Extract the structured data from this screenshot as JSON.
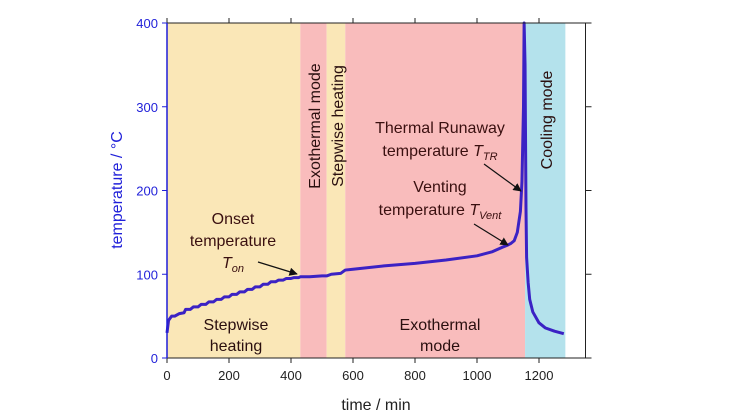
{
  "chart_data": {
    "type": "line",
    "x_label": "time / min",
    "y_label": "temperature / °C",
    "xlim": [
      0,
      1350
    ],
    "ylim": [
      0,
      400
    ],
    "xticks": [
      0,
      200,
      400,
      600,
      800,
      1000,
      1200
    ],
    "yticks": [
      0,
      100,
      200,
      300,
      400
    ],
    "regions": [
      {
        "start": 0,
        "end": 430,
        "color": "#fae7b7"
      },
      {
        "start": 430,
        "end": 515,
        "color": "#f9bcbc"
      },
      {
        "start": 515,
        "end": 575,
        "color": "#fae7b7"
      },
      {
        "start": 575,
        "end": 1155,
        "color": "#f9bcbc"
      },
      {
        "start": 1155,
        "end": 1285,
        "color": "#b4e2ec"
      }
    ],
    "region_labels": [
      [
        "Stepwise",
        "heating"
      ],
      [
        "Exothermal mode"
      ],
      [
        "Stepwise heating"
      ],
      [
        "Exothermal",
        "mode"
      ],
      [
        "Cooling mode"
      ]
    ],
    "annotations": [
      {
        "lines": [
          "Onset",
          "temperature"
        ],
        "symbol": "T",
        "subscript": "on"
      },
      {
        "lines": [
          "Thermal Runaway",
          "temperature"
        ],
        "symbol": "T",
        "subscript": "TR"
      },
      {
        "lines": [
          "Venting",
          "temperature"
        ],
        "symbol": "T",
        "subscript": "Vent"
      }
    ],
    "series": [
      {
        "color": "#3b22c4",
        "x": [
          0,
          5,
          15,
          25,
          40,
          55,
          60,
          75,
          85,
          100,
          110,
          125,
          135,
          150,
          160,
          175,
          185,
          200,
          210,
          225,
          235,
          250,
          260,
          275,
          285,
          300,
          310,
          325,
          335,
          350,
          360,
          375,
          385,
          400,
          410,
          425,
          430,
          460,
          500,
          515,
          530,
          560,
          575,
          600,
          700,
          800,
          900,
          1000,
          1050,
          1080,
          1100,
          1110,
          1120,
          1130,
          1140,
          1145,
          1150,
          1152,
          1155,
          1158,
          1160,
          1165,
          1170,
          1180,
          1200,
          1220,
          1250,
          1280
        ],
        "values": [
          30,
          45,
          50,
          50,
          53,
          54,
          58,
          58,
          61,
          61,
          64,
          64,
          67,
          67,
          70,
          70,
          73,
          73,
          76,
          76,
          79,
          79,
          82,
          82,
          85,
          85,
          88,
          88,
          91,
          91,
          93,
          93,
          95,
          95,
          96,
          96,
          97,
          97,
          98,
          98,
          100,
          101,
          105,
          106,
          110,
          113,
          117,
          122,
          127,
          132,
          135,
          137,
          140,
          150,
          175,
          210,
          300,
          400,
          350,
          180,
          120,
          90,
          70,
          55,
          42,
          36,
          32,
          29
        ]
      }
    ]
  }
}
